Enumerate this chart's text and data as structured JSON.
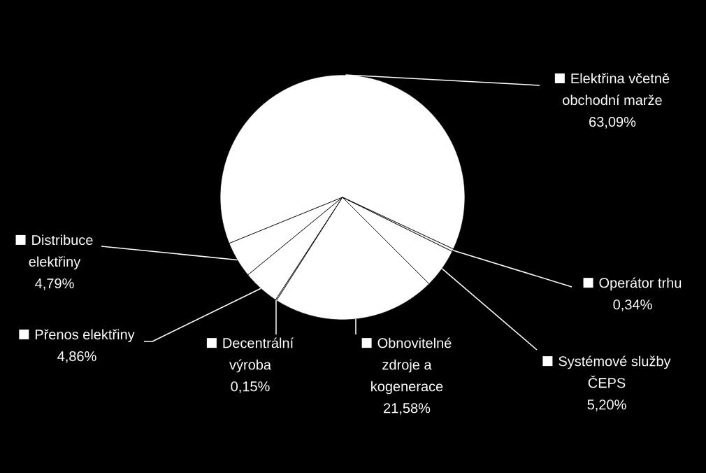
{
  "chart_data": {
    "type": "pie",
    "categories": [
      "Elektřina včetně obchodní marže",
      "Distribuce elektřiny",
      "Přenos elektřiny",
      "Decentrální výroba",
      "Obnovitelné zdroje a kogenerace",
      "Systémové služby ČEPS",
      "Operátor trhu"
    ],
    "values": [
      63.09,
      4.79,
      4.86,
      0.15,
      21.58,
      5.2,
      0.34
    ],
    "colors": [
      "#ffffff",
      "#ffffff",
      "#ffffff",
      "#ffffff",
      "#ffffff",
      "#ffffff",
      "#ffffff"
    ],
    "value_labels": [
      "63,09%",
      "4,79%",
      "4,86%",
      "0,15%",
      "21,58%",
      "5,20%",
      "0,34%"
    ],
    "legend": "bottom"
  }
}
